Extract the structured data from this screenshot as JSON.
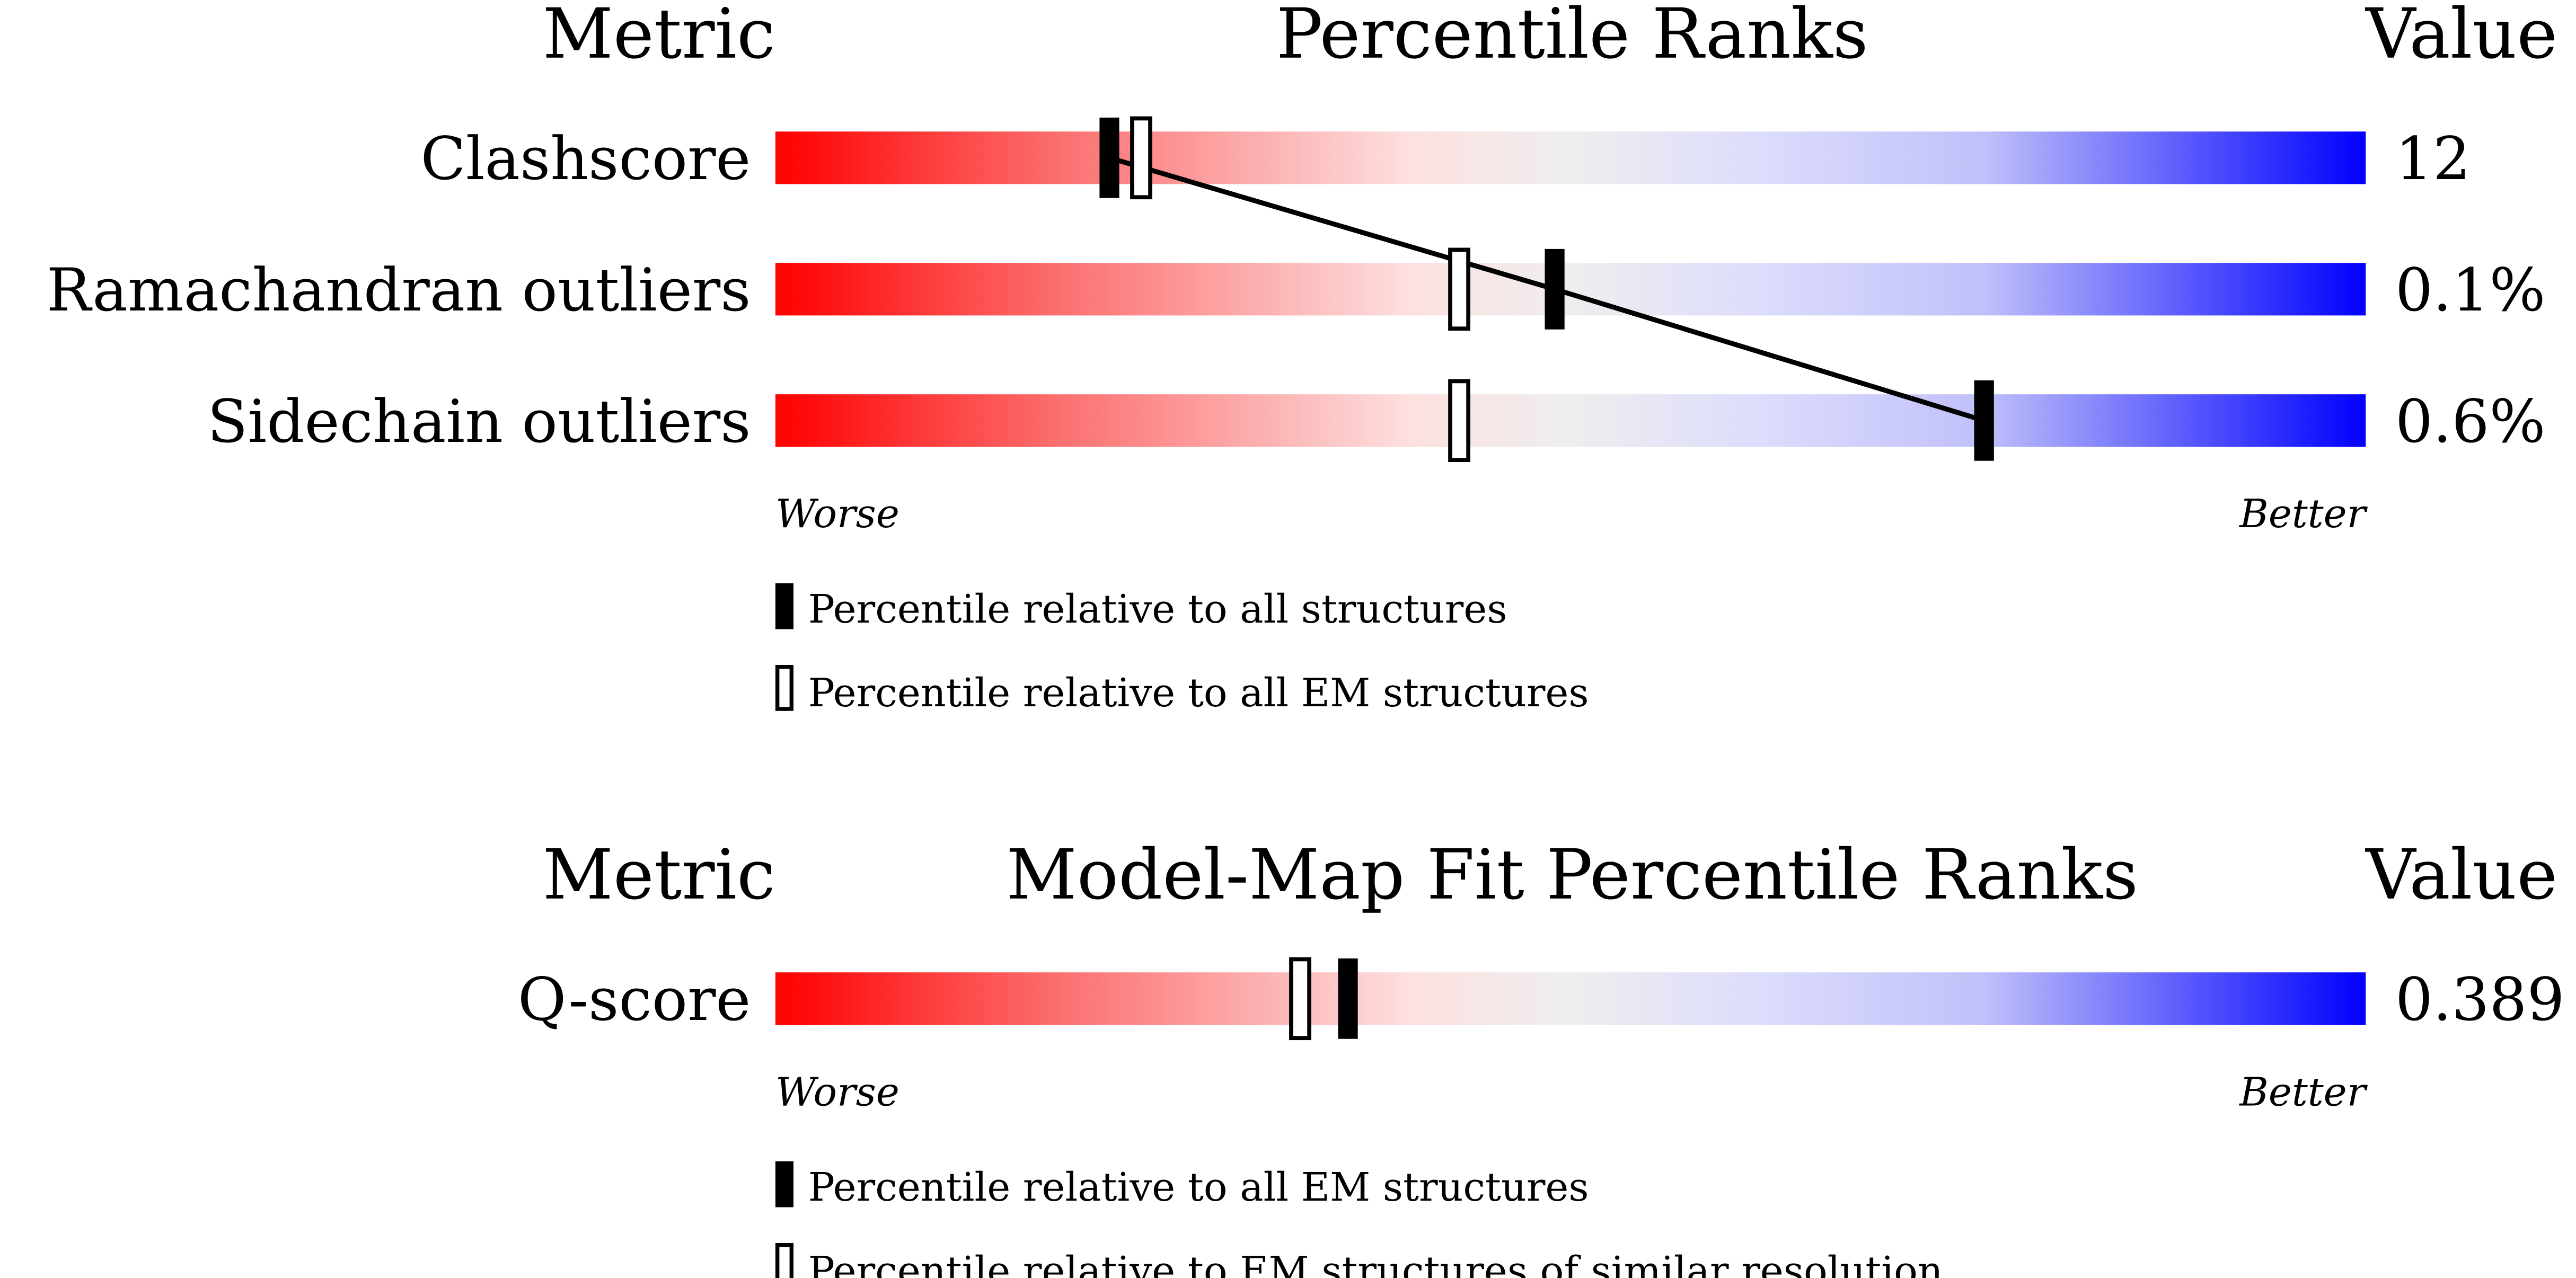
{
  "chart_data": [
    {
      "type": "percentile",
      "title": "Percentile Ranks",
      "metric_header": "Metric",
      "value_header": "Value",
      "worse_label": "Worse",
      "better_label": "Better",
      "xlim": [
        0,
        100
      ],
      "connect": true,
      "categories": [
        "Clashscore",
        "Ramachandran outliers",
        "Sidechain outliers"
      ],
      "value_labels": [
        "12",
        "0.1%",
        "0.6%"
      ],
      "series": [
        {
          "name": "Percentile relative to all structures",
          "style": "filled",
          "color": "#000000",
          "values": [
            21,
            49,
            76
          ]
        },
        {
          "name": "Percentile relative to all EM structures",
          "style": "open",
          "color": "#000000",
          "values": [
            23,
            43,
            43
          ]
        }
      ]
    },
    {
      "type": "percentile",
      "title": "Model-Map Fit Percentile Ranks",
      "metric_header": "Metric",
      "value_header": "Value",
      "worse_label": "Worse",
      "better_label": "Better",
      "xlim": [
        0,
        100
      ],
      "connect": false,
      "categories": [
        "Q-score"
      ],
      "value_labels": [
        "0.389"
      ],
      "series": [
        {
          "name": "Percentile relative to all EM structures",
          "style": "filled",
          "color": "#000000",
          "values": [
            36
          ]
        },
        {
          "name": "Percentile relative to EM structures of similar resolution",
          "style": "open",
          "color": "#000000",
          "values": [
            33
          ]
        }
      ]
    }
  ]
}
